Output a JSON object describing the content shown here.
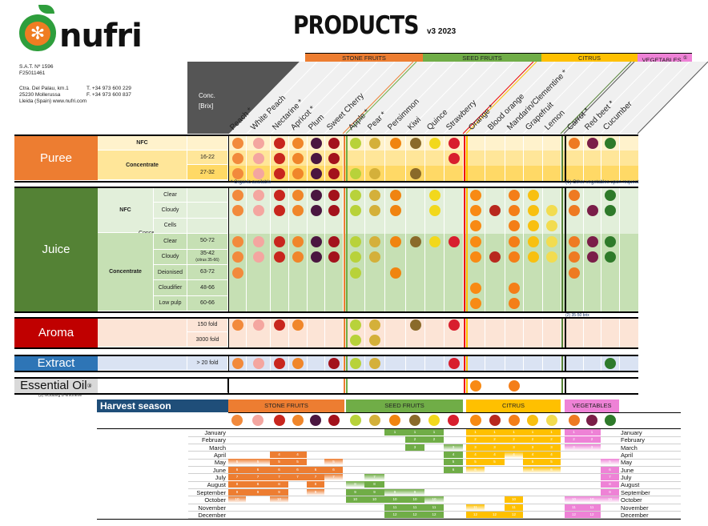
{
  "header": {
    "brand": "nufri",
    "title": "PRODUCTS",
    "version": "v3 2023",
    "company": {
      "sat": "S.A.T. Nº 1596",
      "nif": "F25011461",
      "address1": "Ctra. Del Palau, km.1",
      "address2": "25230 Mollerussa",
      "address3": "Lleida (Spain) www.nufri.com",
      "phone": "T. +34 973 600 229",
      "fax": "F. +34 973 600 837"
    },
    "conc_label": "Conc.",
    "brix_label": "[Brix]"
  },
  "categories": [
    {
      "name": "STONE FRUITS",
      "color": "#ed7d31"
    },
    {
      "name": "SEED FRUITS",
      "color": "#70ad47"
    },
    {
      "name": "CITRUS",
      "color": "#ffc000"
    },
    {
      "name": "VEGETABLES",
      "sup": "①",
      "color": "#ee82d6"
    }
  ],
  "columns": [
    {
      "name": "Peach *",
      "color": "#f28a3c"
    },
    {
      "name": "White Peach",
      "color": "#f4a6a0"
    },
    {
      "name": "Nectarine *",
      "color": "#c8261e"
    },
    {
      "name": "Apricot *",
      "color": "#f0862a"
    },
    {
      "name": "Plum",
      "color": "#4a1640"
    },
    {
      "name": "Sweet Cherry",
      "color": "#a3121c"
    },
    {
      "name": "Apple *",
      "color": "#b8d23a"
    },
    {
      "name": "Pear *",
      "color": "#d4b03a"
    },
    {
      "name": "Persimmon",
      "color": "#f08410"
    },
    {
      "name": "Kiwi",
      "color": "#8a6a2a"
    },
    {
      "name": "Quince",
      "color": "#f2d81c"
    },
    {
      "name": "Strawberry",
      "color": "#d81e2e"
    },
    {
      "name": "Orange *",
      "color": "#f88a14"
    },
    {
      "name": "Blood orange",
      "color": "#b8281e"
    },
    {
      "name": "Mandarin/Clementine *",
      "color": "#f47e18"
    },
    {
      "name": "Grapefruit",
      "color": "#f8c010"
    },
    {
      "name": "Lemon",
      "color": "#f2dc50"
    },
    {
      "name": "Carrot *",
      "color": "#ee7a22"
    },
    {
      "name": "Red beet *",
      "color": "#7a1e48"
    },
    {
      "name": "Cucumber",
      "color": "#2e7a2a"
    }
  ],
  "products": {
    "puree": {
      "label": "Puree",
      "color": "#ed7d31",
      "rows": [
        {
          "type": "NFC",
          "sub": "",
          "brix": "",
          "availability": [
            1,
            1,
            1,
            1,
            1,
            1,
            1,
            1,
            1,
            1,
            1,
            1,
            0,
            0,
            0,
            0,
            0,
            1,
            1,
            1
          ]
        },
        {
          "type": "Concentrate",
          "sub": "",
          "brix": "16-22",
          "availability": [
            1,
            1,
            1,
            1,
            1,
            1,
            0,
            0,
            0,
            0,
            0,
            1,
            0,
            0,
            0,
            0,
            0,
            0,
            0,
            0
          ]
        },
        {
          "type": "",
          "sub": "",
          "brix": "27-32",
          "availability": [
            1,
            1,
            1,
            1,
            1,
            1,
            1,
            1,
            0,
            1,
            0,
            0,
            0,
            0,
            0,
            0,
            0,
            0,
            0,
            0
          ]
        }
      ]
    },
    "juice": {
      "label": "Juice",
      "color": "#548235",
      "nfc_label": "NFC",
      "conc_label": "Concentrate",
      "rows": [
        {
          "sub": "Clear",
          "brix": "",
          "availability": [
            1,
            1,
            1,
            1,
            1,
            1,
            1,
            1,
            1,
            0,
            1,
            0,
            1,
            0,
            1,
            1,
            0,
            1,
            0,
            1
          ]
        },
        {
          "sub": "Cloudy",
          "brix": "",
          "availability": [
            1,
            1,
            1,
            1,
            1,
            1,
            1,
            1,
            1,
            0,
            1,
            0,
            1,
            1,
            1,
            1,
            1,
            1,
            1,
            1
          ]
        },
        {
          "sub": "Cells",
          "brix": "",
          "availability": [
            0,
            0,
            0,
            0,
            0,
            0,
            0,
            0,
            0,
            0,
            0,
            0,
            1,
            0,
            1,
            1,
            1,
            0,
            0,
            0
          ]
        },
        {
          "sub": "Clear",
          "brix": "50-72",
          "availability": [
            1,
            1,
            1,
            1,
            1,
            1,
            1,
            1,
            1,
            1,
            1,
            1,
            1,
            0,
            1,
            1,
            1,
            1,
            1,
            1
          ]
        },
        {
          "sub": "Cloudy",
          "brix": "35-42",
          "brix_note": "(citrus 35-66)",
          "availability": [
            1,
            1,
            1,
            1,
            1,
            1,
            1,
            1,
            0,
            0,
            0,
            0,
            1,
            1,
            1,
            1,
            1,
            1,
            1,
            1
          ]
        },
        {
          "sub": "Deionised",
          "brix": "63-72",
          "availability": [
            1,
            0,
            0,
            0,
            0,
            0,
            1,
            0,
            1,
            0,
            0,
            0,
            0,
            0,
            0,
            0,
            0,
            1,
            0,
            0
          ]
        },
        {
          "sub": "Cloudifier",
          "brix": "48-66",
          "availability": [
            0,
            0,
            0,
            0,
            0,
            0,
            0,
            0,
            0,
            0,
            0,
            0,
            1,
            0,
            1,
            0,
            0,
            0,
            0,
            0
          ]
        },
        {
          "sub": "Low pulp",
          "brix": "60-66",
          "availability": [
            0,
            0,
            0,
            0,
            0,
            0,
            0,
            0,
            0,
            0,
            0,
            0,
            1,
            0,
            1,
            0,
            0,
            0,
            0,
            0
          ]
        }
      ]
    },
    "aroma": {
      "label": "Aroma",
      "color": "#c00000",
      "rows": [
        {
          "brix": "150 fold",
          "availability": [
            1,
            1,
            1,
            1,
            0,
            0,
            1,
            1,
            0,
            1,
            0,
            1,
            0,
            0,
            0,
            0,
            0,
            0,
            0,
            0
          ]
        },
        {
          "brix": "3000 fold",
          "availability": [
            0,
            0,
            0,
            0,
            0,
            0,
            1,
            1,
            0,
            0,
            0,
            0,
            0,
            0,
            0,
            0,
            0,
            0,
            0,
            0
          ]
        }
      ]
    },
    "extract": {
      "label": "Extract",
      "color": "#2e75b6",
      "rows": [
        {
          "brix": "> 20 fold",
          "availability": [
            1,
            1,
            1,
            1,
            0,
            1,
            1,
            1,
            0,
            0,
            0,
            1,
            0,
            0,
            0,
            0,
            0,
            0,
            0,
            1
          ]
        }
      ]
    },
    "essential_oil": {
      "label": "Essential Oil",
      "sup": "③",
      "color": "#d9d9d9",
      "rows": [
        {
          "brix": "",
          "availability": [
            0,
            0,
            0,
            0,
            0,
            0,
            0,
            0,
            0,
            0,
            0,
            0,
            1,
            0,
            1,
            0,
            0,
            0,
            0,
            0
          ]
        }
      ]
    }
  },
  "notes": {
    "organic": "* Organic available",
    "vegetables": "(1) Other vegetables upon request",
    "cucumber_brix": "(2) 35-50 brix",
    "limonene": "(3) including D-limonene"
  },
  "harvest": {
    "title": "Harvest season",
    "months": [
      "January",
      "February",
      "March",
      "April",
      "May",
      "June",
      "July",
      "August",
      "September",
      "October",
      "November",
      "December"
    ],
    "seasons": [
      [
        0,
        0,
        0,
        0,
        1,
        2,
        2,
        2,
        2,
        1,
        0,
        0
      ],
      [
        0,
        0,
        0,
        0,
        1,
        2,
        2,
        2,
        2,
        0,
        0,
        0
      ],
      [
        0,
        0,
        0,
        2,
        2,
        2,
        2,
        2,
        2,
        1,
        0,
        0
      ],
      [
        0,
        0,
        0,
        2,
        2,
        2,
        2,
        0,
        0,
        0,
        0,
        0
      ],
      [
        0,
        0,
        0,
        0,
        0,
        2,
        2,
        2,
        1,
        0,
        0,
        0
      ],
      [
        0,
        0,
        0,
        0,
        1,
        2,
        1,
        0,
        0,
        0,
        0,
        0
      ],
      [
        0,
        0,
        0,
        0,
        0,
        0,
        0,
        1,
        2,
        2,
        0,
        0
      ],
      [
        0,
        0,
        0,
        0,
        0,
        0,
        1,
        2,
        2,
        2,
        0,
        0
      ],
      [
        2,
        0,
        0,
        0,
        0,
        0,
        0,
        0,
        1,
        2,
        2,
        2
      ],
      [
        2,
        2,
        2,
        0,
        0,
        0,
        0,
        0,
        1,
        2,
        2,
        2
      ],
      [
        2,
        2,
        0,
        0,
        0,
        0,
        0,
        0,
        0,
        1,
        2,
        2
      ],
      [
        0,
        0,
        1,
        2,
        2,
        2,
        0,
        0,
        0,
        0,
        0,
        0
      ],
      [
        2,
        2,
        2,
        2,
        2,
        1,
        0,
        0,
        0,
        0,
        1,
        2
      ],
      [
        2,
        2,
        2,
        2,
        2,
        0,
        0,
        0,
        0,
        0,
        0,
        2
      ],
      [
        2,
        2,
        2,
        1,
        0,
        0,
        0,
        0,
        0,
        2,
        2,
        2
      ],
      [
        2,
        2,
        2,
        2,
        2,
        1,
        0,
        0,
        0,
        0,
        0,
        0
      ],
      [
        2,
        2,
        2,
        2,
        2,
        1,
        0,
        0,
        0,
        0,
        0,
        0
      ],
      [
        2,
        2,
        1,
        0,
        0,
        0,
        0,
        0,
        0,
        1,
        2,
        2
      ],
      [
        2,
        2,
        1,
        0,
        0,
        0,
        0,
        0,
        0,
        1,
        2,
        2
      ],
      [
        0,
        0,
        0,
        0,
        1,
        2,
        2,
        2,
        2,
        1,
        0,
        0
      ]
    ]
  }
}
